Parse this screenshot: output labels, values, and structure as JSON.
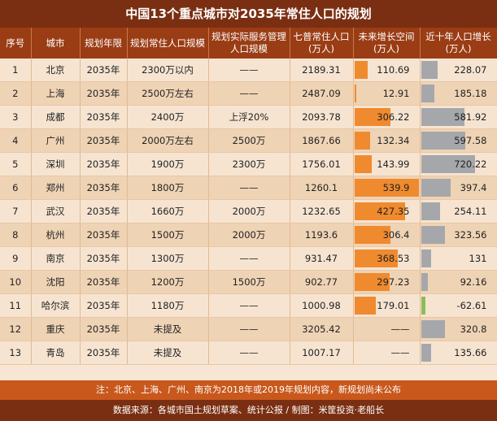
{
  "title": "中国13个重点城市对2035年常住人口的规划",
  "columns": [
    "序号",
    "城市",
    "规划年限",
    "规划常住人口规模",
    "规划实际服务管理人口规模",
    "七普常住人口(万人)",
    "未来增长空间(万人)",
    "近十年人口增长(万人)"
  ],
  "rows": [
    {
      "no": "1",
      "city": "北京",
      "year": "2035年",
      "plan": "2300万以内",
      "service": "——",
      "census": "2189.31",
      "growth": "110.69",
      "decade": "228.07",
      "growth_v": 110.69,
      "decade_v": 228.07
    },
    {
      "no": "2",
      "city": "上海",
      "year": "2035年",
      "plan": "2500万左右",
      "service": "——",
      "census": "2487.09",
      "growth": "12.91",
      "decade": "185.18",
      "growth_v": 12.91,
      "decade_v": 185.18
    },
    {
      "no": "3",
      "city": "成都",
      "year": "2035年",
      "plan": "2400万",
      "service": "上浮20%",
      "census": "2093.78",
      "growth": "306.22",
      "decade": "581.92",
      "growth_v": 306.22,
      "decade_v": 581.92
    },
    {
      "no": "4",
      "city": "广州",
      "year": "2035年",
      "plan": "2000万左右",
      "service": "2500万",
      "census": "1867.66",
      "growth": "132.34",
      "decade": "597.58",
      "growth_v": 132.34,
      "decade_v": 597.58
    },
    {
      "no": "5",
      "city": "深圳",
      "year": "2035年",
      "plan": "1900万",
      "service": "2300万",
      "census": "1756.01",
      "growth": "143.99",
      "decade": "720.22",
      "growth_v": 143.99,
      "decade_v": 720.22
    },
    {
      "no": "6",
      "city": "郑州",
      "year": "2035年",
      "plan": "1800万",
      "service": "——",
      "census": "1260.1",
      "growth": "539.9",
      "decade": "397.4",
      "growth_v": 539.9,
      "decade_v": 397.4
    },
    {
      "no": "7",
      "city": "武汉",
      "year": "2035年",
      "plan": "1660万",
      "service": "2000万",
      "census": "1232.65",
      "growth": "427.35",
      "decade": "254.11",
      "growth_v": 427.35,
      "decade_v": 254.11
    },
    {
      "no": "8",
      "city": "杭州",
      "year": "2035年",
      "plan": "1500万",
      "service": "2000万",
      "census": "1193.6",
      "growth": "306.4",
      "decade": "323.56",
      "growth_v": 306.4,
      "decade_v": 323.56
    },
    {
      "no": "9",
      "city": "南京",
      "year": "2035年",
      "plan": "1300万",
      "service": "——",
      "census": "931.47",
      "growth": "368.53",
      "decade": "131",
      "growth_v": 368.53,
      "decade_v": 131
    },
    {
      "no": "10",
      "city": "沈阳",
      "year": "2035年",
      "plan": "1200万",
      "service": "1500万",
      "census": "902.77",
      "growth": "297.23",
      "decade": "92.16",
      "growth_v": 297.23,
      "decade_v": 92.16
    },
    {
      "no": "11",
      "city": "哈尔滨",
      "year": "2035年",
      "plan": "1180万",
      "service": "——",
      "census": "1000.98",
      "growth": "179.01",
      "decade": "-62.61",
      "growth_v": 179.01,
      "decade_v": -62.61
    },
    {
      "no": "12",
      "city": "重庆",
      "year": "2035年",
      "plan": "未提及",
      "service": "——",
      "census": "3205.42",
      "growth": "——",
      "decade": "320.8",
      "growth_v": 0,
      "decade_v": 320.8
    },
    {
      "no": "13",
      "city": "青岛",
      "year": "2035年",
      "plan": "未提及",
      "service": "——",
      "census": "1007.17",
      "growth": "——",
      "decade": "135.66",
      "growth_v": 0,
      "decade_v": 135.66
    }
  ],
  "growth_max": 539.9,
  "decade_max": 720.22,
  "colors": {
    "growth_bar": "#f08a2e",
    "decade_bar": "#a5a7aa",
    "negative_bar": "#8bbd5a"
  },
  "note": "注：北京、上海、广州、南京为2018年或2019年规划内容，新规划尚未公布",
  "source": "数据来源：各城市国土规划草案、统计公报 / 制图：米筐投资·老船长"
}
